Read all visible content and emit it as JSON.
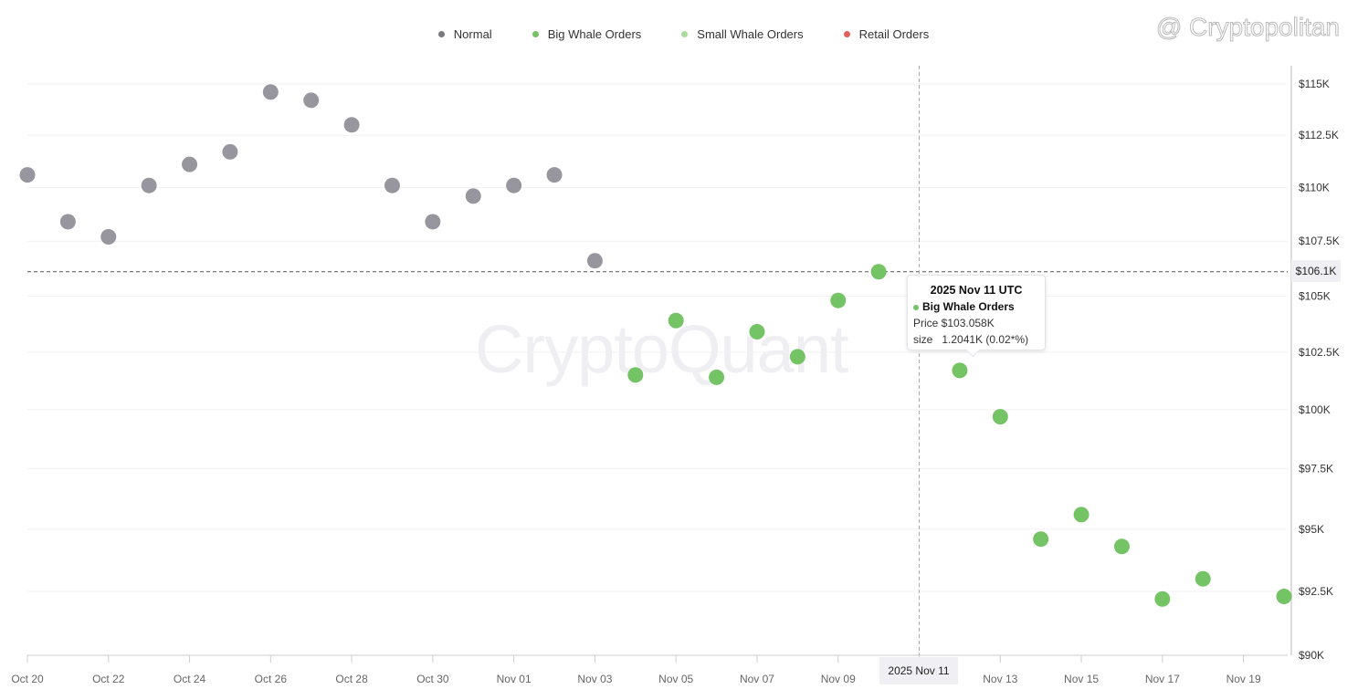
{
  "legend": [
    {
      "label": "Normal",
      "color": "#7a7a80"
    },
    {
      "label": "Big Whale Orders",
      "color": "#74c365"
    },
    {
      "label": "Small Whale Orders",
      "color": "#a9dc9b"
    },
    {
      "label": "Retail Orders",
      "color": "#e35d5d"
    }
  ],
  "watermark": "CryptoQuant",
  "watermark2": "@ Cryptopolitan",
  "tooltip": {
    "title": "2025 Nov 11 UTC",
    "series": "Big Whale Orders",
    "price": "Price $103.058K",
    "size": "size   1.2041K (0.02*%)"
  },
  "crosshair": {
    "x_label": "2025 Nov 11",
    "y_label": "$106.1K"
  },
  "chart_data": {
    "type": "scatter",
    "yscale": "log",
    "ylim": [
      90000,
      116000
    ],
    "current_price_line": 106100,
    "y_ticks": [
      90000,
      92500,
      95000,
      97500,
      100000,
      102500,
      105000,
      107500,
      110000,
      112500,
      115000
    ],
    "y_tick_labels": [
      "$90K",
      "$92.5K",
      "$95K",
      "$97.5K",
      "$100K",
      "$102.5K",
      "$105K",
      "$107.5K",
      "$110K",
      "$112.5K",
      "$115K"
    ],
    "x_tick_labels": [
      "Oct 20",
      "Oct 22",
      "Oct 24",
      "Oct 26",
      "Oct 28",
      "Oct 30",
      "Nov 01",
      "Nov 03",
      "Nov 05",
      "Nov 07",
      "Nov 09",
      "Nov 11",
      "Nov 13",
      "Nov 15",
      "Nov 17",
      "Nov 19"
    ],
    "x_start": "2025-10-20",
    "x_end": "2025-11-20",
    "series": [
      {
        "name": "Normal",
        "color": "#97959e",
        "points": [
          [
            "2025-10-20",
            110600
          ],
          [
            "2025-10-21",
            108400
          ],
          [
            "2025-10-22",
            107700
          ],
          [
            "2025-10-23",
            110100
          ],
          [
            "2025-10-24",
            111100
          ],
          [
            "2025-10-25",
            111700
          ],
          [
            "2025-10-26",
            114600
          ],
          [
            "2025-10-27",
            114200
          ],
          [
            "2025-10-28",
            113000
          ],
          [
            "2025-10-29",
            110100
          ],
          [
            "2025-10-30",
            108400
          ],
          [
            "2025-10-31",
            109600
          ],
          [
            "2025-11-01",
            110100
          ],
          [
            "2025-11-02",
            110600
          ],
          [
            "2025-11-03",
            106600
          ]
        ]
      },
      {
        "name": "Big Whale Orders",
        "color": "#74c365",
        "points": [
          [
            "2025-11-04",
            101500
          ],
          [
            "2025-11-05",
            103900
          ],
          [
            "2025-11-06",
            101400
          ],
          [
            "2025-11-07",
            103400
          ],
          [
            "2025-11-08",
            102300
          ],
          [
            "2025-11-09",
            104800
          ],
          [
            "2025-11-10",
            106100
          ],
          [
            "2025-11-11",
            103058
          ],
          [
            "2025-11-12",
            101700
          ],
          [
            "2025-11-13",
            99700
          ],
          [
            "2025-11-14",
            94600
          ],
          [
            "2025-11-15",
            95600
          ],
          [
            "2025-11-16",
            94300
          ],
          [
            "2025-11-17",
            92200
          ],
          [
            "2025-11-18",
            93000
          ],
          [
            "2025-11-20",
            92300
          ]
        ]
      }
    ]
  }
}
